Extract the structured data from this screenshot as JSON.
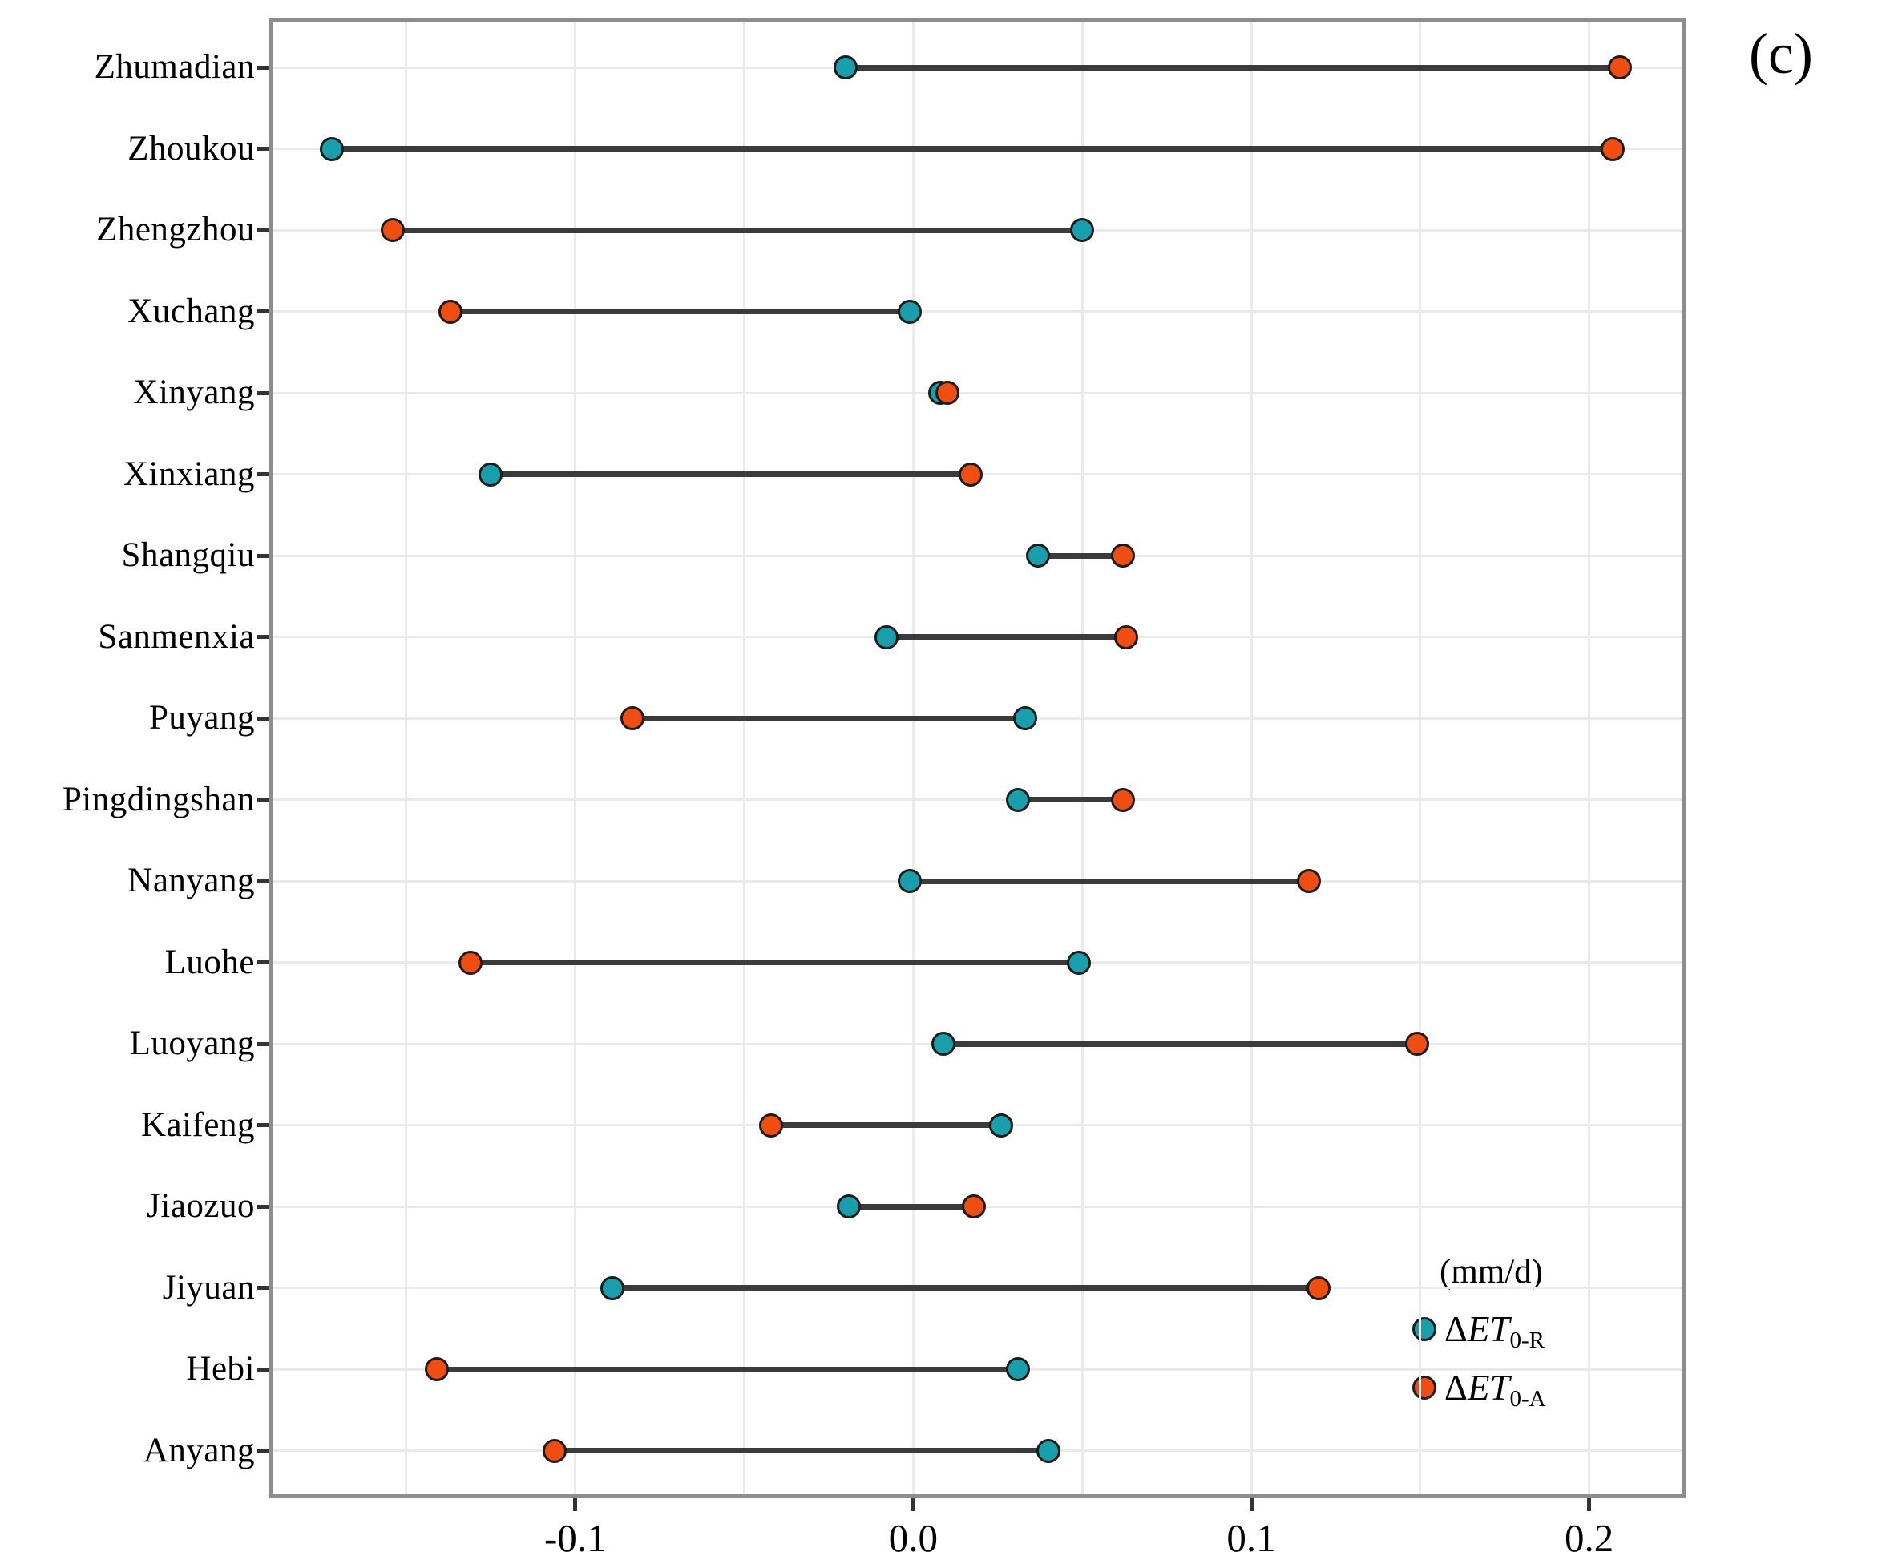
{
  "panel_label": "(c)",
  "chart_data": {
    "type": "dumbbell",
    "orientation": "horizontal",
    "title": "",
    "xlabel": "",
    "ylabel": "",
    "unit": "(mm/d)",
    "xlim": [
      -0.1896,
      0.2276
    ],
    "x_ticks": [
      -0.1,
      0.0,
      0.1,
      0.2
    ],
    "x_tick_labels": [
      "-0.1",
      "0.0",
      "0.1",
      "0.2"
    ],
    "gridlines_x": [
      -0.15,
      -0.1,
      -0.05,
      0.0,
      0.05,
      0.1,
      0.15,
      0.2
    ],
    "grid": "on",
    "categories": [
      "Zhumadian",
      "Zhoukou",
      "Zhengzhou",
      "Xuchang",
      "Xinyang",
      "Xinxiang",
      "Shangqiu",
      "Sanmenxia",
      "Puyang",
      "Pingdingshan",
      "Nanyang",
      "Luohe",
      "Luoyang",
      "Kaifeng",
      "Jiaozuo",
      "Jiyuan",
      "Hebi",
      "Anyang"
    ],
    "series": [
      {
        "name": "ΔET0-R",
        "delta": "Δ",
        "symbol": "ET",
        "sub": "0-R",
        "color": "#17A0AC",
        "values": [
          -0.02,
          -0.172,
          0.05,
          -0.001,
          0.008,
          -0.125,
          0.037,
          -0.008,
          0.033,
          0.031,
          -0.001,
          0.049,
          0.009,
          0.026,
          -0.019,
          -0.089,
          0.031,
          0.04
        ]
      },
      {
        "name": "ΔET0-A",
        "delta": "Δ",
        "symbol": "ET",
        "sub": "0-A",
        "color": "#F04D11",
        "values": [
          0.209,
          0.207,
          -0.154,
          -0.137,
          0.01,
          0.017,
          0.062,
          0.063,
          -0.083,
          0.062,
          0.117,
          -0.131,
          0.149,
          -0.042,
          0.018,
          0.12,
          -0.141,
          -0.106
        ]
      }
    ],
    "legend": {
      "title": "(mm/d)",
      "position": "bottom-right"
    },
    "colors": {
      "marker_outline": "#1c1c1c",
      "connector": "#3b3b3b",
      "gridline": "#ebebeb",
      "plot_border": "#8d8d8d",
      "background": "#ffffff"
    }
  }
}
